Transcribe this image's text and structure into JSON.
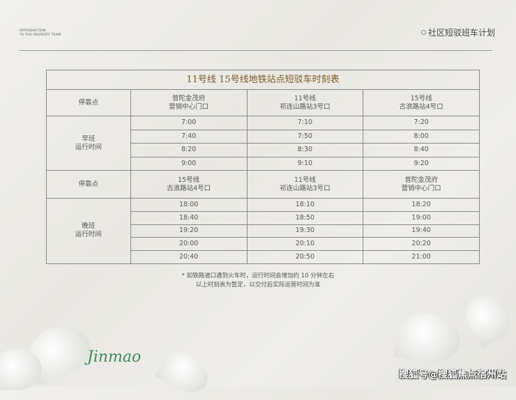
{
  "header": {
    "intro_line1": "INTRODUCTION",
    "intro_line2": "TO THE PROPERTY TEAM",
    "section_title": "社区短驳班车计划"
  },
  "table": {
    "title": "11号线  15号线地铁站点短驳车时刻表",
    "morning": {
      "stop_label": "停靠点",
      "stops": [
        [
          "普陀金茂府",
          "营销中心门口"
        ],
        [
          "11号线",
          "祁连山路站3号口"
        ],
        [
          "15号线",
          "古浪路站4号口"
        ]
      ],
      "period": [
        "早班",
        "运行时间"
      ],
      "rows": [
        [
          "7:00",
          "7:10",
          "7:20"
        ],
        [
          "7:40",
          "7:50",
          "8:00"
        ],
        [
          "8:20",
          "8:30",
          "8:40"
        ],
        [
          "9:00",
          "9:10",
          "9:20"
        ]
      ]
    },
    "evening": {
      "stop_label": "停靠点",
      "stops": [
        [
          "15号线",
          "古浪路站4号口"
        ],
        [
          "11号线",
          "祁连山路站3号口"
        ],
        [
          "普陀金茂府",
          "营销中心门口"
        ]
      ],
      "period": [
        "晚班",
        "运行时间"
      ],
      "rows": [
        [
          "18:00",
          "18:10",
          "18:20"
        ],
        [
          "18:40",
          "18:50",
          "19:00"
        ],
        [
          "19:20",
          "19:30",
          "19:40"
        ],
        [
          "20:00",
          "20:10",
          "20:20"
        ],
        [
          "20:40",
          "20:50",
          "21:00"
        ]
      ]
    }
  },
  "notes": [
    "* 如铁路道口遇到火车时，运行时间会增加约 10 分钟左右",
    "以上时刻表为暂定，以交付后实际运营时间为准"
  ],
  "logo": "Jinmao",
  "watermark": "搜狐号@搜狐焦点宿州站"
}
